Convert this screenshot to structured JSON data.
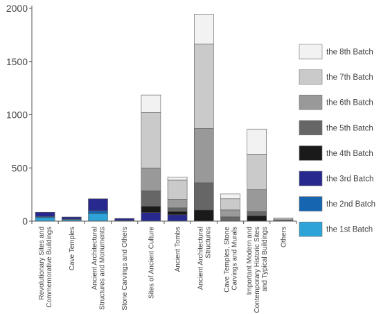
{
  "chart_data": {
    "type": "bar",
    "stacked": true,
    "categories": [
      [
        "Revolutionary Sites and",
        "Commemorative Buildings"
      ],
      [
        "Cave Temples"
      ],
      [
        "Ancient Architectural",
        "Structures and Monuments"
      ],
      [
        "Stone Carvings and Others"
      ],
      [
        "Sites of Ancient Culture"
      ],
      [
        "Ancient Tombs"
      ],
      [
        "Ancient Architectural",
        "Structures"
      ],
      [
        "Cave Temples, Stone",
        "Carvings and Murals"
      ],
      [
        "Important Modern and",
        "Contemporary Historic Sites",
        "and Typical Buildings"
      ],
      [
        "Others"
      ]
    ],
    "series": [
      {
        "name": "the 1st Batch",
        "color": "#2ea3d8",
        "values": [
          33,
          14,
          70,
          0,
          0,
          0,
          0,
          0,
          0,
          0
        ]
      },
      {
        "name": "the 2nd Batch",
        "color": "#1565b0",
        "values": [
          10,
          5,
          28,
          5,
          0,
          0,
          0,
          0,
          0,
          0
        ]
      },
      {
        "name": "the 3rd Batch",
        "color": "#28298f",
        "values": [
          40,
          20,
          112,
          20,
          80,
          60,
          0,
          0,
          0,
          0
        ]
      },
      {
        "name": "the 4th Batch",
        "color": "#1a1a1a",
        "values": [
          0,
          0,
          0,
          0,
          60,
          30,
          105,
          0,
          50,
          0
        ]
      },
      {
        "name": "the 5th Batch",
        "color": "#666666",
        "values": [
          0,
          0,
          0,
          0,
          145,
          35,
          255,
          40,
          40,
          5
        ]
      },
      {
        "name": "the 6th Batch",
        "color": "#999999",
        "values": [
          0,
          0,
          0,
          0,
          215,
          80,
          510,
          65,
          205,
          5
        ]
      },
      {
        "name": "the 7th Batch",
        "color": "#cacaca",
        "values": [
          0,
          0,
          0,
          0,
          520,
          180,
          795,
          105,
          335,
          10
        ]
      },
      {
        "name": "the 8th Batch",
        "color": "#f2f2f2",
        "values": [
          0,
          0,
          0,
          0,
          165,
          30,
          280,
          45,
          235,
          10
        ]
      }
    ],
    "ylim": [
      0,
      2000
    ],
    "yticks": [
      "0",
      "500",
      "1000",
      "1500",
      "2000"
    ],
    "legend_position": "right",
    "grid": false
  }
}
